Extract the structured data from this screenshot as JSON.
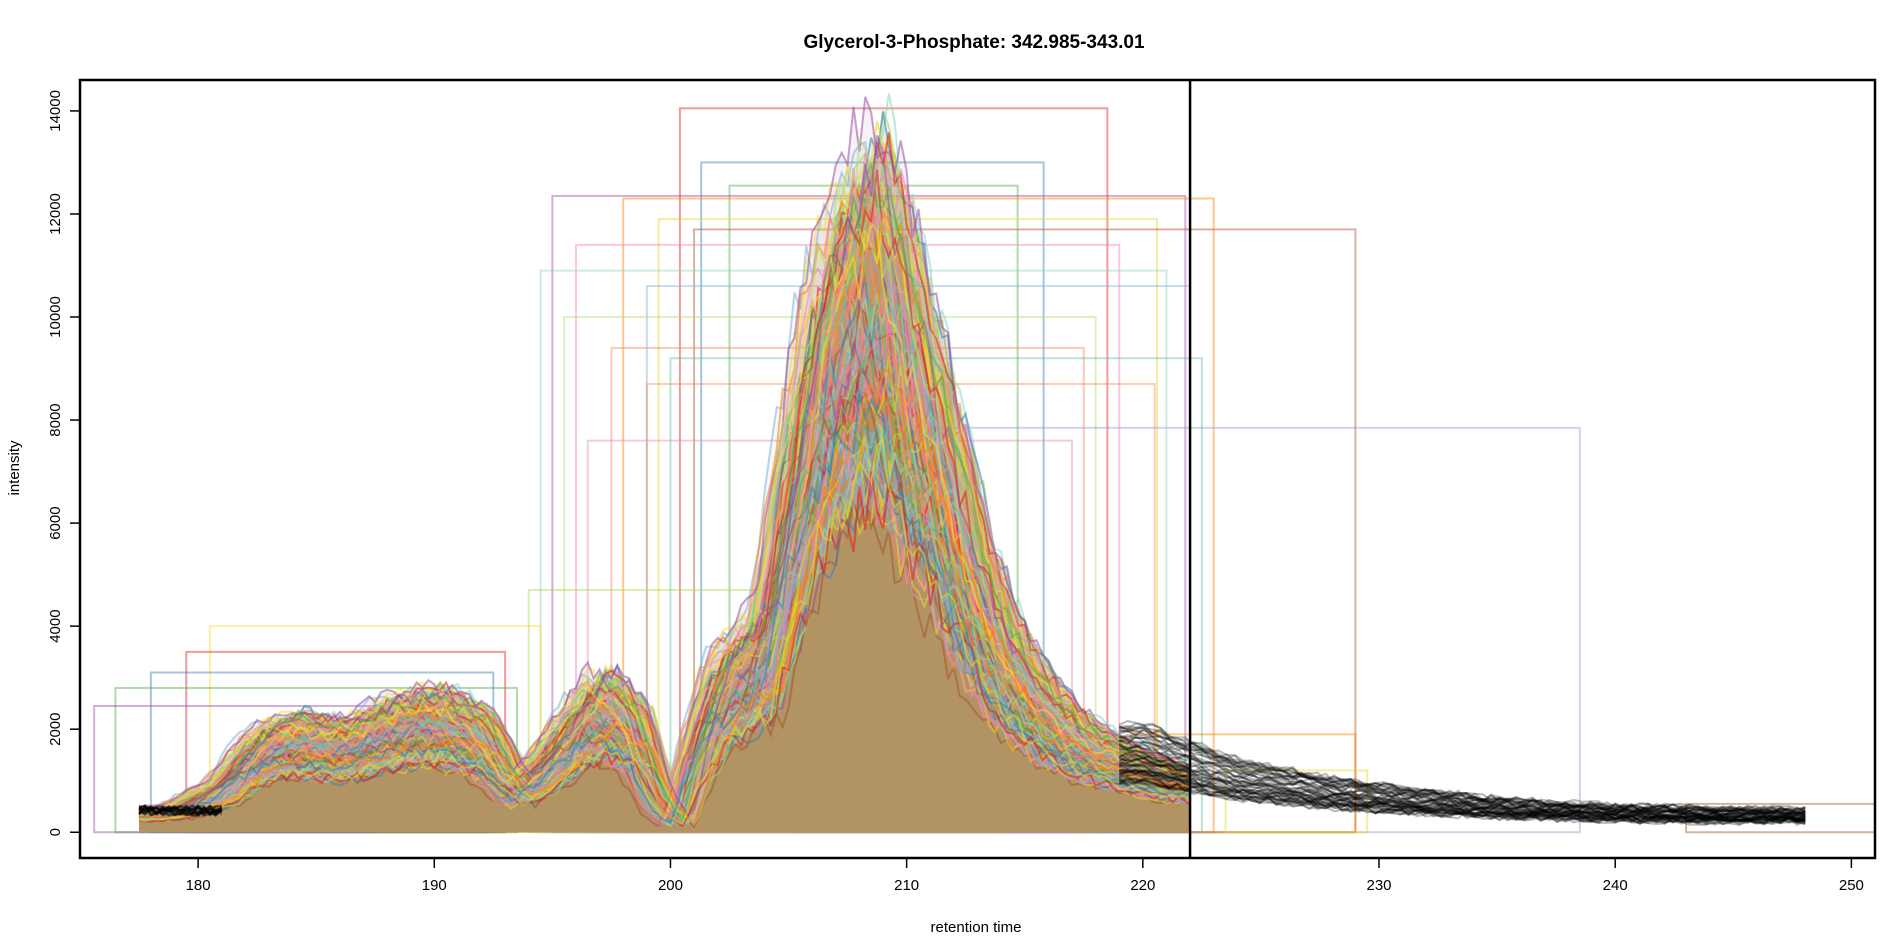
{
  "chart_data": {
    "type": "line",
    "title": "Glycerol-3-Phosphate: 342.985-343.01",
    "xlabel": "retention time",
    "ylabel": "intensity",
    "xlim": [
      175,
      251
    ],
    "ylim": [
      -500,
      14600
    ],
    "xticks": [
      180,
      190,
      200,
      210,
      220,
      230,
      240,
      250
    ],
    "yticks": [
      0,
      2000,
      4000,
      6000,
      8000,
      10000,
      12000,
      14000
    ],
    "grid": false,
    "legend": "none",
    "vertical_marker": {
      "x": 222.0,
      "color": "#000000"
    },
    "colors": [
      "#e41a1c",
      "#377eb8",
      "#4daf4a",
      "#984ea3",
      "#ff7f00",
      "#e6d72a",
      "#a65628",
      "#f781bf",
      "#8dd3c7",
      "#80b1d3",
      "#b3de69",
      "#fb8072",
      "#66c2a5",
      "#fc8d62",
      "#8da0cb",
      "#e78ac3",
      "#a6d854",
      "#ffd92f"
    ],
    "series_count": 96,
    "peak_profile": {
      "description_free": true,
      "x": [
        177.5,
        179,
        181,
        182.5,
        184,
        186,
        188,
        190,
        192,
        193.5,
        194.5,
        195.5,
        197,
        198.5,
        199.5,
        200.3,
        201,
        202,
        203,
        204,
        205,
        206,
        207,
        208,
        208.5,
        209,
        209.5,
        210,
        211,
        212,
        213,
        214,
        215,
        216,
        217,
        218,
        219,
        220,
        221,
        222,
        224,
        226,
        228,
        230,
        232,
        234,
        236,
        238,
        240,
        242,
        244,
        246,
        248
      ],
      "y": [
        400,
        450,
        900,
        1700,
        2000,
        1800,
        2200,
        2400,
        2000,
        900,
        1300,
        1900,
        2700,
        2100,
        700,
        200,
        1500,
        2900,
        3400,
        3800,
        6500,
        8900,
        10300,
        11100,
        11600,
        11300,
        10600,
        9700,
        8200,
        6600,
        5000,
        3800,
        3000,
        2400,
        2000,
        1700,
        1500,
        1300,
        1150,
        1050,
        1000,
        950,
        850,
        780,
        700,
        620,
        560,
        500,
        460,
        420,
        380,
        360,
        340
      ]
    },
    "baseline_tail": {
      "x": [
        220,
        224,
        228,
        232,
        236,
        240,
        244,
        248.3
      ],
      "y": [
        1700,
        1150,
        850,
        650,
        500,
        420,
        380,
        360
      ]
    },
    "peak_windows": [
      {
        "x0": 200.4,
        "x1": 218.5,
        "y": 14050
      },
      {
        "x0": 201.3,
        "x1": 215.8,
        "y": 13000
      },
      {
        "x0": 202.5,
        "x1": 214.7,
        "y": 12550
      },
      {
        "x0": 195.0,
        "x1": 221.8,
        "y": 12350
      },
      {
        "x0": 198.0,
        "x1": 223.0,
        "y": 12300
      },
      {
        "x0": 199.5,
        "x1": 220.6,
        "y": 11900
      },
      {
        "x0": 201.0,
        "x1": 229.0,
        "y": 11700
      },
      {
        "x0": 196.0,
        "x1": 219.0,
        "y": 11400
      },
      {
        "x0": 194.5,
        "x1": 221.0,
        "y": 10900
      },
      {
        "x0": 199.0,
        "x1": 222.0,
        "y": 10600
      },
      {
        "x0": 195.5,
        "x1": 218.0,
        "y": 10000
      },
      {
        "x0": 197.5,
        "x1": 217.5,
        "y": 9400
      },
      {
        "x0": 200.0,
        "x1": 222.5,
        "y": 9200
      },
      {
        "x0": 199.0,
        "x1": 220.5,
        "y": 8700
      },
      {
        "x0": 205.0,
        "x1": 238.5,
        "y": 7850
      },
      {
        "x0": 196.5,
        "x1": 217.0,
        "y": 7600
      },
      {
        "x0": 194.0,
        "x1": 214.0,
        "y": 4700
      },
      {
        "x0": 180.5,
        "x1": 194.5,
        "y": 4000
      },
      {
        "x0": 179.5,
        "x1": 193.0,
        "y": 3500
      },
      {
        "x0": 178.0,
        "x1": 192.5,
        "y": 3100
      },
      {
        "x0": 176.5,
        "x1": 193.5,
        "y": 2800
      },
      {
        "x0": 175.6,
        "x1": 187.5,
        "y": 2450
      },
      {
        "x0": 219.5,
        "x1": 229.0,
        "y": 1900
      },
      {
        "x0": 223.5,
        "x1": 229.5,
        "y": 1200
      },
      {
        "x0": 243.0,
        "x1": 251.0,
        "y": 550
      }
    ]
  }
}
